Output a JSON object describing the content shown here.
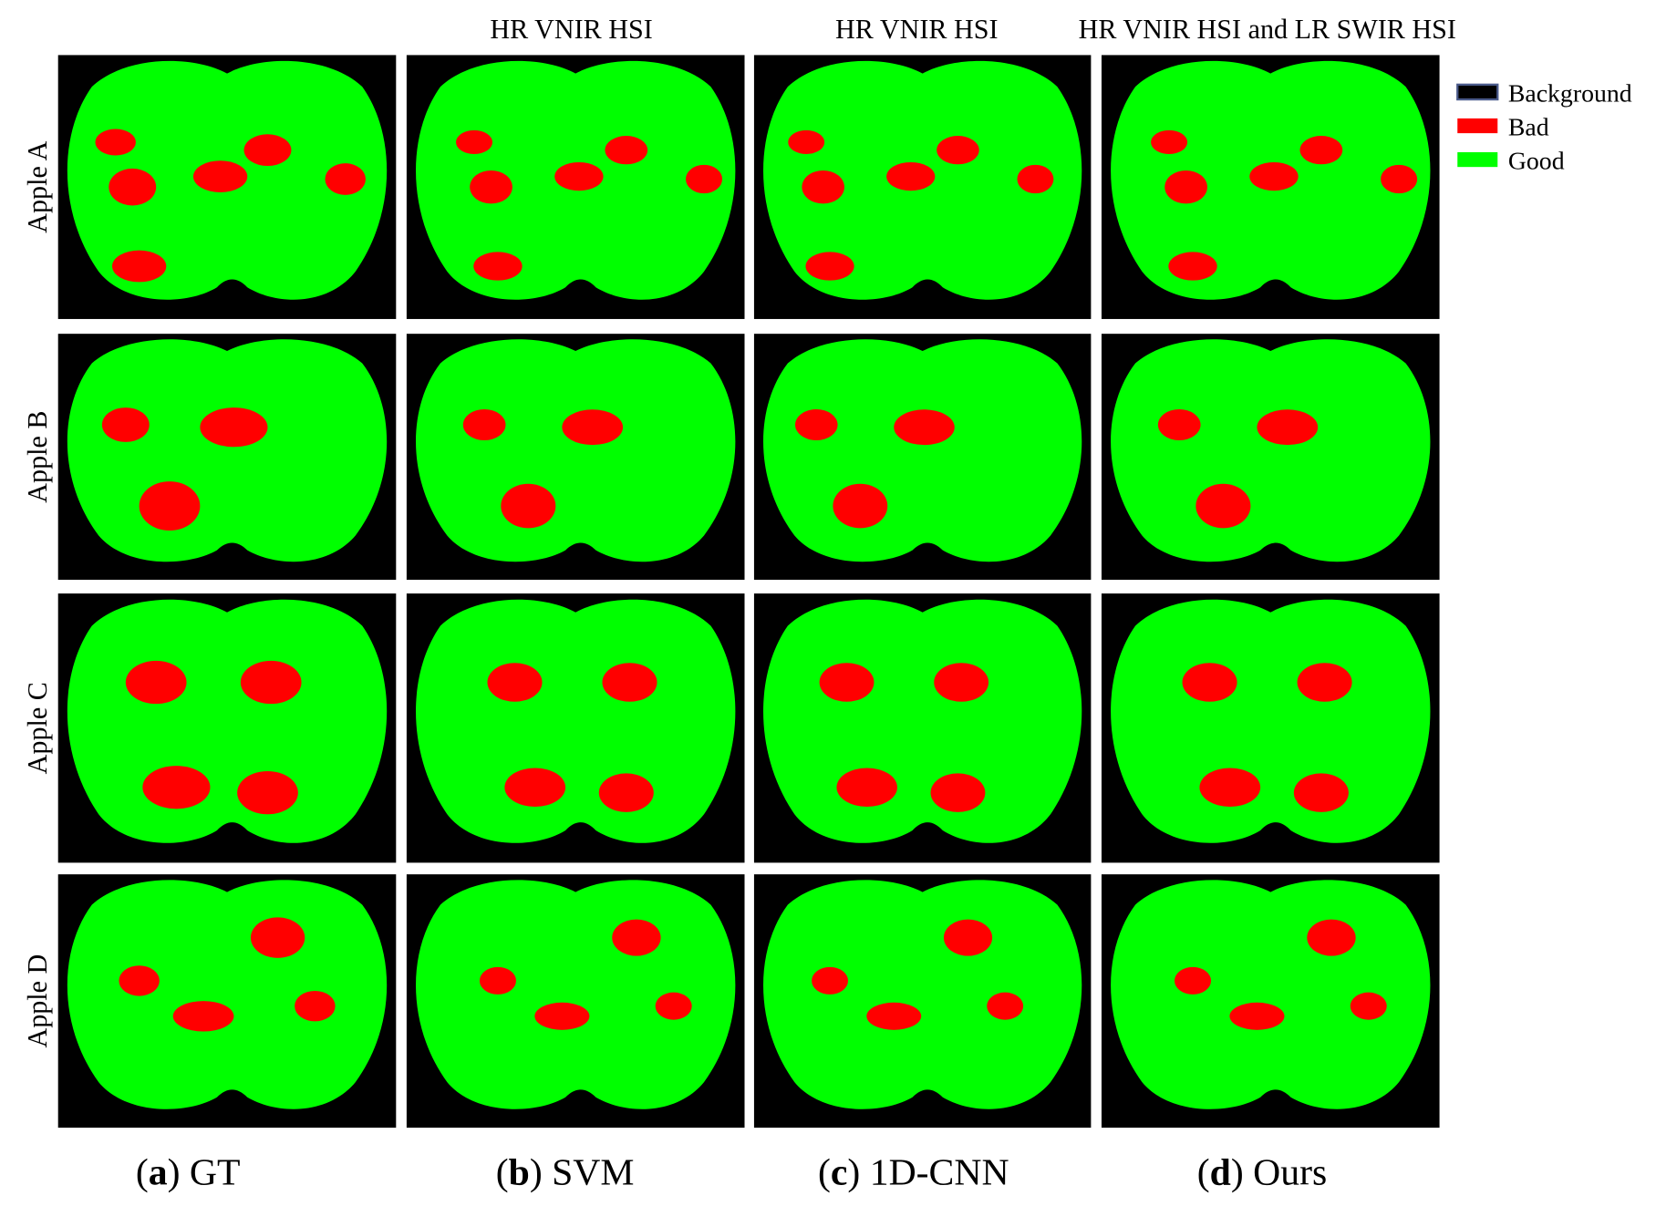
{
  "column_headers": [
    "HR VNIR HSI",
    "HR VNIR HSI",
    "HR VNIR HSI and LR SWIR HSI"
  ],
  "row_labels": [
    "Apple A",
    "Apple B",
    "Apple C",
    "Apple D"
  ],
  "legend": [
    {
      "label": "Background",
      "color": "#000000"
    },
    {
      "label": "Bad",
      "color": "#ff0000"
    },
    {
      "label": "Good",
      "color": "#00ff00"
    }
  ],
  "captions": [
    {
      "open": "(",
      "letter": "a",
      "rest": ") GT"
    },
    {
      "open": "(",
      "letter": "b",
      "rest": ") SVM"
    },
    {
      "open": "(",
      "letter": "c",
      "rest": ") 1D-CNN"
    },
    {
      "open": "(",
      "letter": "d",
      "rest": ") Ours"
    }
  ]
}
